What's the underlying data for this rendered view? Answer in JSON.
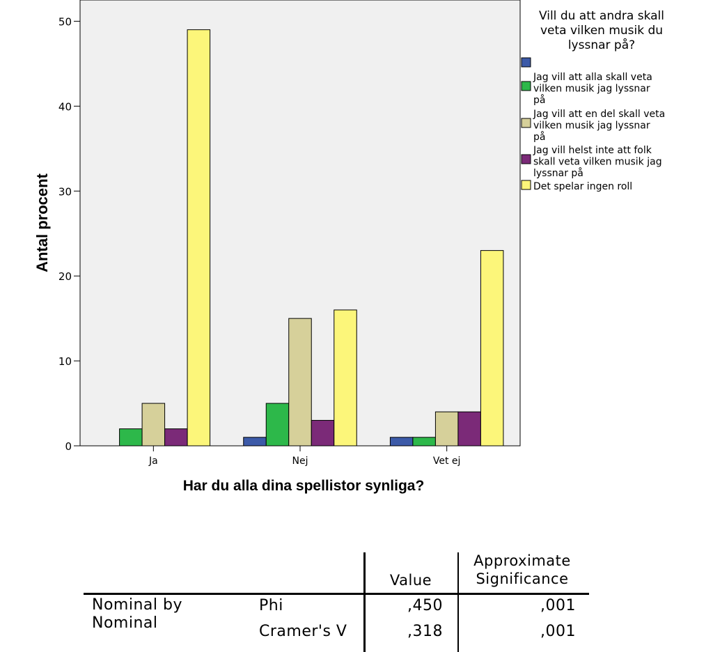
{
  "chart_data": {
    "type": "bar",
    "title": "",
    "xlabel": "Har du alla dina spellistor synliga?",
    "ylabel": "Antal procent",
    "ylim": [
      0,
      52.5
    ],
    "yticks": [
      "0",
      "10",
      "20",
      "30",
      "40",
      "50"
    ],
    "categories": [
      "Ja",
      "Nej",
      "Vet ej"
    ],
    "legend_title": "Vill du att andra skall veta vilken musik du lyssnar på?",
    "legend_position": "right",
    "series": [
      {
        "name": "",
        "color": "#3c5aa8",
        "values": [
          0,
          1,
          1
        ]
      },
      {
        "name": "Jag vill att alla skall veta vilken musik jag lyssnar på",
        "color": "#2db84a",
        "values": [
          2,
          5,
          1
        ]
      },
      {
        "name": "Jag vill att en del skall veta vilken musik jag lyssnar på",
        "color": "#d6d09a",
        "values": [
          5,
          15,
          4
        ]
      },
      {
        "name": "Jag vill helst inte att folk skall veta vilken musik jag lyssnar på",
        "color": "#7b2a78",
        "values": [
          2,
          3,
          4
        ]
      },
      {
        "name": "Det spelar ingen roll",
        "color": "#fcf67a",
        "values": [
          49,
          16,
          23
        ]
      }
    ],
    "legend_lines": [
      [],
      [
        "Jag vill att alla skall veta",
        "vilken musik jag lyssnar",
        "på"
      ],
      [
        "Jag vill att en del skall veta",
        "vilken musik jag lyssnar",
        "på"
      ],
      [
        "Jag vill helst inte att folk",
        "skall veta vilken musik jag",
        "lyssnar på"
      ],
      [
        "Det spelar ingen roll"
      ]
    ],
    "legend_title_lines": [
      "Vill du att andra skall",
      "veta vilken musik du",
      "lyssnar på?"
    ],
    "plot_background": "#f0f0f0",
    "grid": false
  },
  "table": {
    "header_value": "Value",
    "header_sig_line1": "Approximate",
    "header_sig_line2": "Significance",
    "row_label_line1": "Nominal by",
    "row_label_line2": "Nominal",
    "rows": [
      {
        "measure": "Phi",
        "value": ",450",
        "sig": ",001"
      },
      {
        "measure": "Cramer's V",
        "value": ",318",
        "sig": ",001"
      }
    ]
  }
}
